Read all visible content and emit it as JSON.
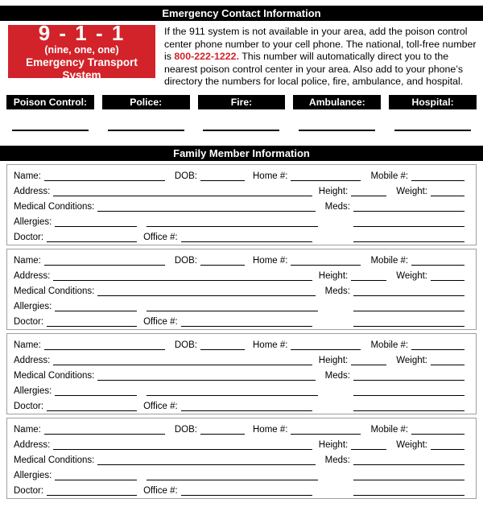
{
  "colors": {
    "accent_red": "#d2232a",
    "bar_background": "#000000",
    "bar_text": "#ffffff",
    "block_border": "#9e9e9e"
  },
  "headers": {
    "emergency_contact": "Emergency Contact Information",
    "family_member": "Family Member Information"
  },
  "call_box": {
    "number": "9 - 1 - 1",
    "pronunciation": "(nine, one, one)",
    "subtitle": "Emergency Transport System"
  },
  "instructions": {
    "text_before": "If the 911 system is not available in your area, add the poison control center phone number to your cell phone. The national, toll-free number is ",
    "phone_number": "800-222-1222.",
    "text_after": " This number will automatically direct you to the nearest poison control center in your area. Also add to your phone’s directory the numbers for local police, fire, ambulance, and hospital."
  },
  "emergency_numbers": {
    "labels": [
      "Poison Control:",
      "Police:",
      "Fire:",
      "Ambulance:",
      "Hospital:"
    ]
  },
  "member_form": {
    "count": 4,
    "fields": {
      "name": "Name:",
      "dob": "DOB:",
      "home": "Home #:",
      "mobile": "Mobile #:",
      "address": "Address:",
      "height": "Height:",
      "weight": "Weight:",
      "medical_conditions": "Medical Conditions:",
      "meds": "Meds:",
      "allergies": "Allergies:",
      "doctor": "Doctor:",
      "office": "Office #:"
    }
  }
}
